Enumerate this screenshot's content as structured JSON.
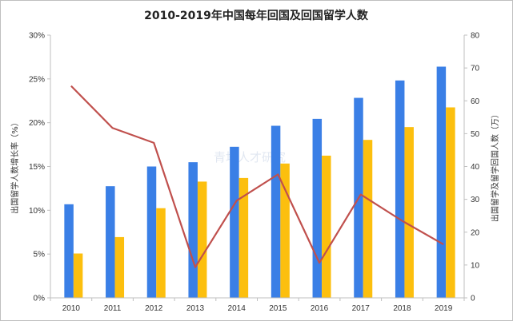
{
  "chart_data": {
    "type": "bar",
    "title": "2010-2019年中国每年回国及回国留学人数",
    "categories": [
      "2010",
      "2011",
      "2012",
      "2013",
      "2014",
      "2015",
      "2016",
      "2017",
      "2018",
      "2019"
    ],
    "series": [
      {
        "type": "bar",
        "axis": "right",
        "color": "#3a7fe6",
        "values": [
          28.5,
          34,
          40,
          41.3,
          46,
          52.4,
          54.5,
          60.9,
          66.2,
          70.4
        ]
      },
      {
        "type": "bar",
        "axis": "right",
        "color": "#fcbf0e",
        "values": [
          13.5,
          18.5,
          27.3,
          35.4,
          36.5,
          40.9,
          43.3,
          48.1,
          52,
          58
        ]
      },
      {
        "type": "line",
        "axis": "left",
        "color": "#c0504d",
        "values": [
          24.2,
          19.4,
          17.7,
          3.5,
          11.1,
          14.1,
          4,
          11.8,
          8.8,
          6.1
        ]
      }
    ],
    "ylabel_left": "出国留学人数增长率（%）",
    "ylabel_right": "出国留学及留学回国人数（万）",
    "ylim_left": [
      0,
      30
    ],
    "ylim_right": [
      0,
      80
    ],
    "yticks_left": [
      "0%",
      "5%",
      "10%",
      "15%",
      "20%",
      "25%",
      "30%"
    ],
    "yticks_right": [
      "0",
      "10",
      "20",
      "30",
      "40",
      "50",
      "60",
      "70",
      "80"
    ],
    "grid": false,
    "legend": "none"
  },
  "watermark": "青塔人才研究"
}
